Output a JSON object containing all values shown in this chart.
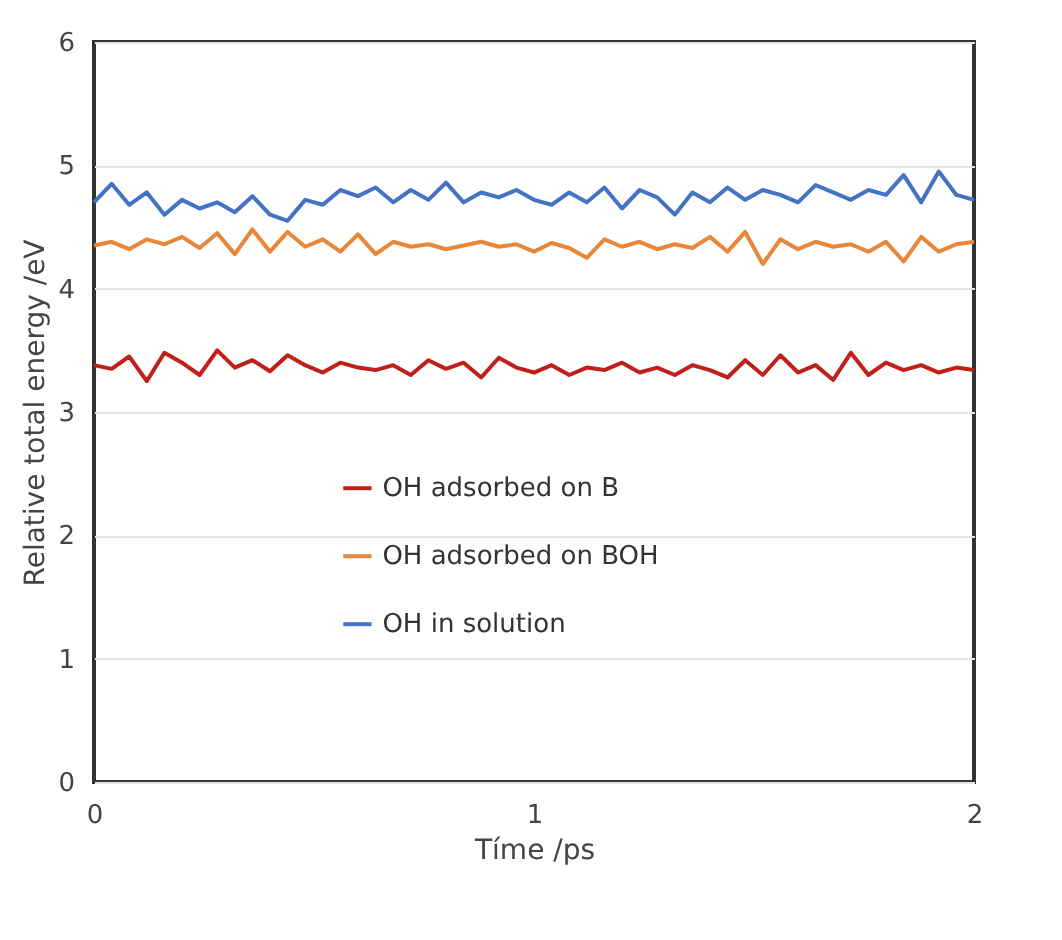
{
  "chart_data": {
    "type": "line",
    "xlabel": "Tíme /ps",
    "ylabel": "Relative total energy /eV",
    "x": [
      0,
      0.04,
      0.08,
      0.12,
      0.16,
      0.2,
      0.24,
      0.28,
      0.32,
      0.36,
      0.4,
      0.44,
      0.48,
      0.52,
      0.56,
      0.6,
      0.64,
      0.68,
      0.72,
      0.76,
      0.8,
      0.84,
      0.88,
      0.92,
      0.96,
      1.0,
      1.04,
      1.08,
      1.12,
      1.16,
      1.2,
      1.24,
      1.28,
      1.32,
      1.36,
      1.4,
      1.44,
      1.48,
      1.52,
      1.56,
      1.6,
      1.64,
      1.68,
      1.72,
      1.76,
      1.8,
      1.84,
      1.88,
      1.92,
      1.96,
      2.0
    ],
    "series": [
      {
        "name": "OH adsorbed on B",
        "color": "#c0201b",
        "values": [
          3.38,
          3.35,
          3.45,
          3.25,
          3.48,
          3.4,
          3.3,
          3.5,
          3.36,
          3.42,
          3.33,
          3.46,
          3.38,
          3.32,
          3.4,
          3.36,
          3.34,
          3.38,
          3.3,
          3.42,
          3.35,
          3.4,
          3.28,
          3.44,
          3.36,
          3.32,
          3.38,
          3.3,
          3.36,
          3.34,
          3.4,
          3.32,
          3.36,
          3.3,
          3.38,
          3.34,
          3.28,
          3.42,
          3.3,
          3.46,
          3.32,
          3.38,
          3.26,
          3.48,
          3.3,
          3.4,
          3.34,
          3.38,
          3.32,
          3.36,
          3.34
        ]
      },
      {
        "name": "OH adsorbed on BOH",
        "color": "#e8873a",
        "values": [
          4.35,
          4.38,
          4.32,
          4.4,
          4.36,
          4.42,
          4.33,
          4.45,
          4.28,
          4.48,
          4.3,
          4.46,
          4.34,
          4.4,
          4.3,
          4.44,
          4.28,
          4.38,
          4.34,
          4.36,
          4.32,
          4.35,
          4.38,
          4.34,
          4.36,
          4.3,
          4.37,
          4.33,
          4.25,
          4.4,
          4.34,
          4.38,
          4.32,
          4.36,
          4.33,
          4.42,
          4.3,
          4.46,
          4.2,
          4.4,
          4.32,
          4.38,
          4.34,
          4.36,
          4.3,
          4.38,
          4.22,
          4.42,
          4.3,
          4.36,
          4.38
        ]
      },
      {
        "name": "OH in solution",
        "color": "#4472c4",
        "values": [
          4.7,
          4.85,
          4.68,
          4.78,
          4.6,
          4.72,
          4.65,
          4.7,
          4.62,
          4.75,
          4.6,
          4.55,
          4.72,
          4.68,
          4.8,
          4.75,
          4.82,
          4.7,
          4.8,
          4.72,
          4.86,
          4.7,
          4.78,
          4.74,
          4.8,
          4.72,
          4.68,
          4.78,
          4.7,
          4.82,
          4.65,
          4.8,
          4.74,
          4.6,
          4.78,
          4.7,
          4.82,
          4.72,
          4.8,
          4.76,
          4.7,
          4.84,
          4.78,
          4.72,
          4.8,
          4.76,
          4.92,
          4.7,
          4.95,
          4.76,
          4.72
        ]
      }
    ],
    "xlim": [
      0,
      2
    ],
    "xticks": [
      0,
      1,
      2
    ],
    "ylim": [
      0,
      6
    ],
    "yticks": [
      0,
      1,
      2,
      3,
      4,
      5,
      6
    ],
    "grid": "y",
    "legend": "bottom",
    "marker": "none",
    "line_style": "solid"
  }
}
